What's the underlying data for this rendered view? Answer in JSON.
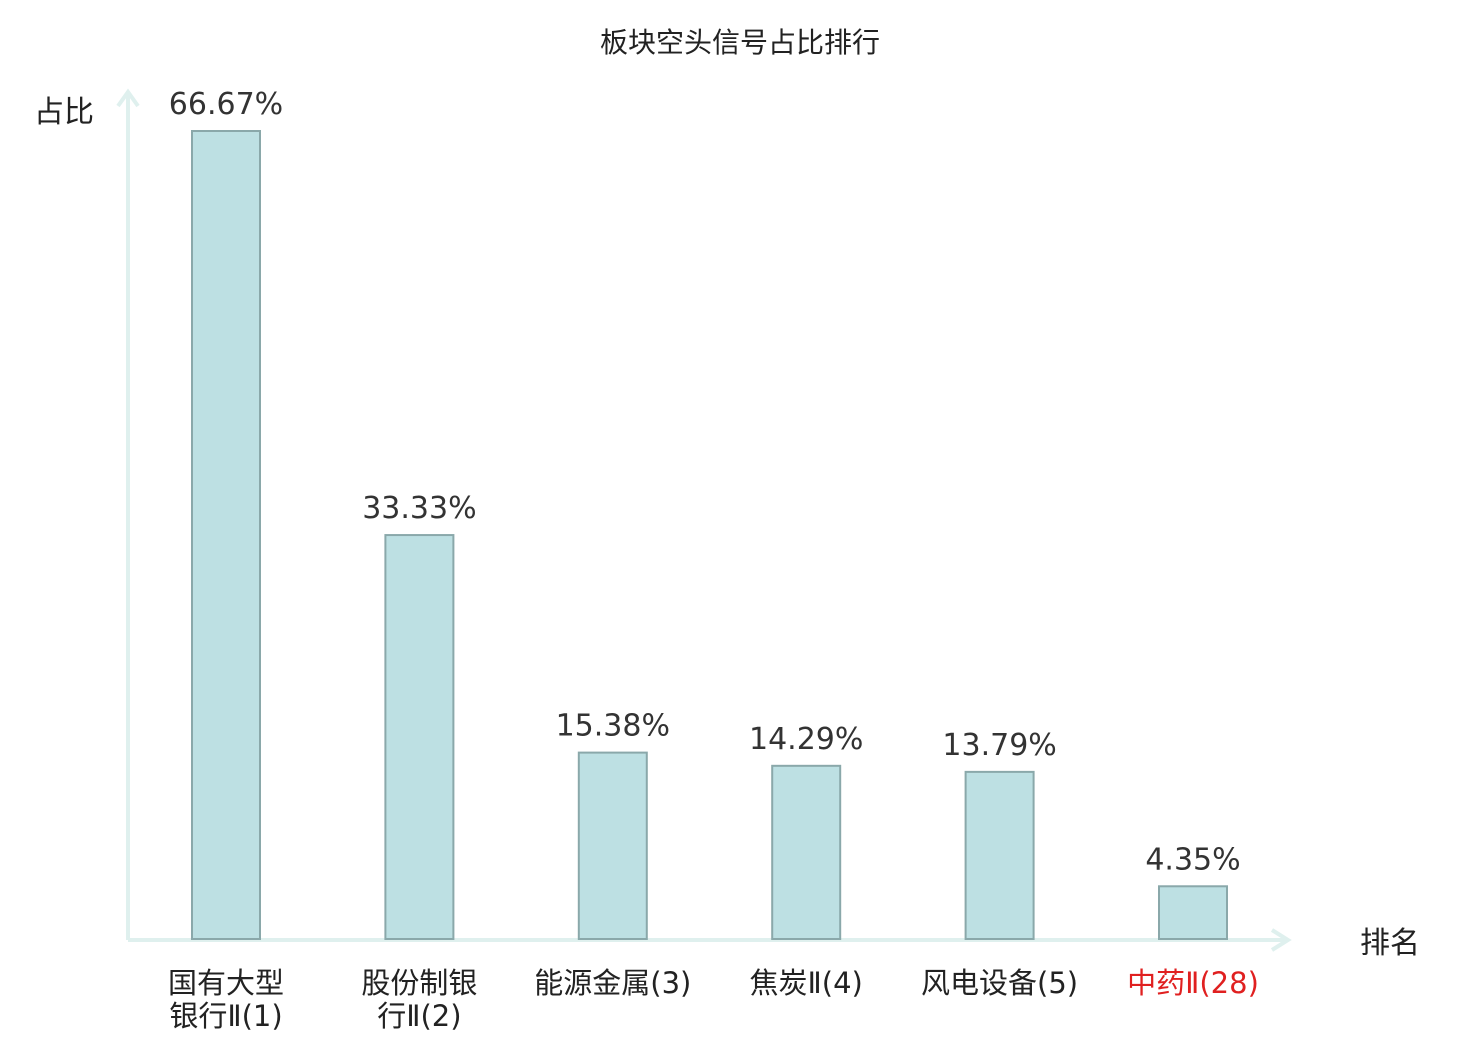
{
  "chart_data": {
    "type": "bar",
    "title": "板块空头信号占比排行",
    "ylabel": "占比",
    "xlabel": "排名",
    "unit": "%",
    "ylim": [
      0,
      66.67
    ],
    "grid": false,
    "legend": "none",
    "categories": [
      {
        "lines": [
          "国有大型",
          "银行Ⅱ(1)"
        ],
        "highlight": false
      },
      {
        "lines": [
          "股份制银",
          "行Ⅱ(2)"
        ],
        "highlight": false
      },
      {
        "lines": [
          "能源金属(3)"
        ],
        "highlight": false
      },
      {
        "lines": [
          "焦炭Ⅱ(4)"
        ],
        "highlight": false
      },
      {
        "lines": [
          "风电设备(5)"
        ],
        "highlight": false
      },
      {
        "lines": [
          "中药Ⅱ(28)"
        ],
        "highlight": true
      }
    ],
    "values": [
      66.67,
      33.33,
      15.38,
      14.29,
      13.79,
      4.35
    ],
    "value_labels": [
      "66.67%",
      "33.33%",
      "15.38%",
      "14.29%",
      "13.79%",
      "4.35%"
    ],
    "colors": {
      "bar_fill": "#bde0e3",
      "bar_stroke": "#8aa8aa",
      "axis": "#dff0ee",
      "label": "#222222",
      "highlight": "#e02020"
    }
  }
}
